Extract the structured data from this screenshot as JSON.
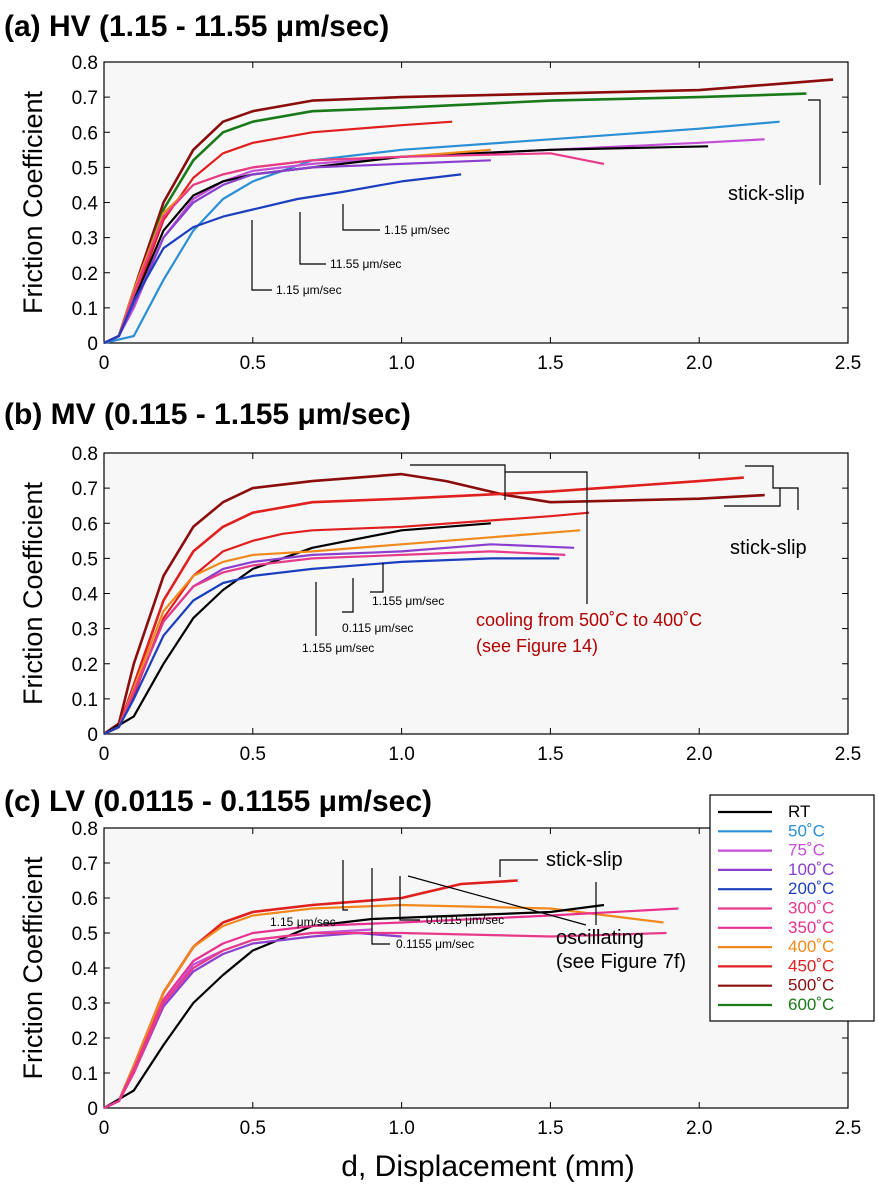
{
  "x_label": "d, Displacement (mm)",
  "chart_data": [
    {
      "type": "line",
      "title": "(a) HV (1.15 - 11.55 μm/sec)",
      "ylabel": "Friction Coefficient",
      "xlim": [
        0,
        2.5
      ],
      "ylim": [
        0,
        0.8
      ],
      "xticks": [
        "0",
        "0.5",
        "1.0",
        "1.5",
        "2.0",
        "2.5"
      ],
      "yticks": [
        "0",
        "0.1",
        "0.2",
        "0.3",
        "0.4",
        "0.5",
        "0.6",
        "0.7",
        "0.8"
      ],
      "series": [
        {
          "name": "500˚C",
          "color": "#8b0d0d",
          "stickslip": true,
          "x": [
            0,
            0.05,
            0.1,
            0.2,
            0.3,
            0.4,
            0.5,
            0.7,
            1.0,
            1.5,
            2.0,
            2.45
          ],
          "y": [
            0,
            0.02,
            0.15,
            0.4,
            0.55,
            0.63,
            0.66,
            0.69,
            0.7,
            0.71,
            0.72,
            0.75
          ]
        },
        {
          "name": "600˚C",
          "color": "#1a7a1a",
          "stickslip": true,
          "x": [
            0,
            0.05,
            0.1,
            0.2,
            0.3,
            0.4,
            0.5,
            0.7,
            1.0,
            1.5,
            2.0,
            2.36
          ],
          "y": [
            0,
            0.02,
            0.14,
            0.38,
            0.52,
            0.6,
            0.63,
            0.66,
            0.67,
            0.69,
            0.7,
            0.71
          ]
        },
        {
          "name": "450˚C",
          "color": "#e01f1f",
          "x": [
            0,
            0.05,
            0.1,
            0.2,
            0.3,
            0.4,
            0.5,
            0.7,
            1.0,
            1.17
          ],
          "y": [
            0,
            0.02,
            0.12,
            0.35,
            0.47,
            0.54,
            0.57,
            0.6,
            0.62,
            0.63
          ]
        },
        {
          "name": "50˚C",
          "color": "#2b8fd6",
          "x": [
            0,
            0.1,
            0.2,
            0.3,
            0.4,
            0.5,
            0.7,
            1.0,
            1.5,
            2.0,
            2.27
          ],
          "y": [
            0,
            0.02,
            0.18,
            0.32,
            0.41,
            0.46,
            0.52,
            0.55,
            0.58,
            0.61,
            0.63
          ]
        },
        {
          "name": "75˚C",
          "color": "#c34fd6",
          "x": [
            0,
            0.05,
            0.1,
            0.2,
            0.3,
            0.4,
            0.5,
            0.7,
            1.0,
            1.5,
            2.0,
            2.22
          ],
          "y": [
            0,
            0.02,
            0.1,
            0.3,
            0.41,
            0.46,
            0.49,
            0.51,
            0.53,
            0.55,
            0.57,
            0.58
          ]
        },
        {
          "name": "RT",
          "color": "#000000",
          "x": [
            0,
            0.05,
            0.1,
            0.2,
            0.3,
            0.4,
            0.5,
            0.7,
            1.0,
            1.5,
            2.03
          ],
          "y": [
            0,
            0.02,
            0.12,
            0.32,
            0.42,
            0.46,
            0.48,
            0.5,
            0.53,
            0.55,
            0.56
          ]
        },
        {
          "name": "400˚C",
          "color": "#f08a1c",
          "x": [
            0,
            0.05,
            0.1,
            0.2,
            0.3,
            0.4,
            0.5,
            0.7,
            1.0,
            1.3
          ],
          "y": [
            0,
            0.02,
            0.15,
            0.37,
            0.45,
            0.48,
            0.5,
            0.52,
            0.53,
            0.55
          ]
        },
        {
          "name": "300˚C",
          "color": "#e83a8a",
          "x": [
            0,
            0.05,
            0.1,
            0.2,
            0.3,
            0.4,
            0.5,
            0.7,
            1.0,
            1.5,
            1.68
          ],
          "y": [
            0,
            0.02,
            0.14,
            0.36,
            0.45,
            0.48,
            0.5,
            0.52,
            0.53,
            0.54,
            0.51
          ]
        },
        {
          "name": "100˚C",
          "color": "#8a3fcf",
          "x": [
            0,
            0.05,
            0.1,
            0.2,
            0.3,
            0.4,
            0.5,
            0.7,
            1.0,
            1.3
          ],
          "y": [
            0,
            0.02,
            0.11,
            0.3,
            0.4,
            0.45,
            0.48,
            0.5,
            0.51,
            0.52
          ]
        },
        {
          "name": "200˚C",
          "color": "#1c3fbf",
          "x": [
            0,
            0.05,
            0.1,
            0.2,
            0.3,
            0.4,
            0.5,
            0.65,
            0.8,
            1.0,
            1.2
          ],
          "y": [
            0,
            0.02,
            0.12,
            0.27,
            0.33,
            0.36,
            0.38,
            0.41,
            0.43,
            0.46,
            0.48
          ]
        }
      ],
      "annotations": [
        {
          "label": "stick-slip",
          "kind": "large"
        },
        {
          "label": "1.15 μm/sec",
          "kind": "small"
        },
        {
          "label": "11.55 μm/sec",
          "kind": "small"
        },
        {
          "label": "1.15 μm/sec",
          "kind": "small"
        }
      ]
    },
    {
      "type": "line",
      "title": "(b) MV (0.115 - 1.155 μm/sec)",
      "ylabel": "Friction Coefficient",
      "xlim": [
        0,
        2.5
      ],
      "ylim": [
        0,
        0.8
      ],
      "xticks": [
        "0",
        "0.5",
        "1.0",
        "1.5",
        "2.0",
        "2.5"
      ],
      "yticks": [
        "0",
        "0.1",
        "0.2",
        "0.3",
        "0.4",
        "0.5",
        "0.6",
        "0.7",
        "0.8"
      ],
      "series": [
        {
          "name": "500˚C",
          "color": "#8b0d0d",
          "stickslip": true,
          "x": [
            0,
            0.05,
            0.1,
            0.2,
            0.3,
            0.4,
            0.5,
            0.7,
            1.0,
            1.15,
            1.35,
            1.5,
            2.0,
            2.22
          ],
          "y": [
            0,
            0.03,
            0.2,
            0.45,
            0.59,
            0.66,
            0.7,
            0.72,
            0.74,
            0.72,
            0.68,
            0.66,
            0.67,
            0.68
          ]
        },
        {
          "name": "450˚C",
          "color": "#e01f1f",
          "stickslip": true,
          "x": [
            0,
            0.05,
            0.1,
            0.2,
            0.3,
            0.4,
            0.5,
            0.7,
            1.0,
            1.5,
            2.0,
            2.15
          ],
          "y": [
            0,
            0.02,
            0.14,
            0.38,
            0.52,
            0.59,
            0.63,
            0.66,
            0.67,
            0.69,
            0.72,
            0.73
          ]
        },
        {
          "name": "450˚C (cooling)",
          "color": "#e01f1f",
          "x": [
            0,
            0.05,
            0.1,
            0.2,
            0.3,
            0.4,
            0.5,
            0.6,
            0.7,
            1.0,
            1.5,
            1.63
          ],
          "y": [
            0,
            0.02,
            0.11,
            0.33,
            0.45,
            0.52,
            0.55,
            0.57,
            0.58,
            0.59,
            0.62,
            0.63
          ]
        },
        {
          "name": "RT",
          "color": "#000000",
          "x": [
            0,
            0.1,
            0.2,
            0.3,
            0.4,
            0.5,
            0.7,
            1.0,
            1.3
          ],
          "y": [
            0,
            0.05,
            0.2,
            0.33,
            0.41,
            0.47,
            0.53,
            0.58,
            0.6
          ]
        },
        {
          "name": "400˚C",
          "color": "#f08a1c",
          "x": [
            0,
            0.05,
            0.1,
            0.2,
            0.3,
            0.4,
            0.5,
            0.7,
            1.0,
            1.3,
            1.6
          ],
          "y": [
            0,
            0.02,
            0.13,
            0.35,
            0.45,
            0.49,
            0.51,
            0.52,
            0.54,
            0.56,
            0.58
          ]
        },
        {
          "name": "100˚C",
          "color": "#8a3fcf",
          "x": [
            0,
            0.05,
            0.1,
            0.2,
            0.3,
            0.4,
            0.5,
            0.7,
            1.0,
            1.3,
            1.58
          ],
          "y": [
            0,
            0.02,
            0.12,
            0.32,
            0.42,
            0.47,
            0.49,
            0.51,
            0.52,
            0.54,
            0.53
          ]
        },
        {
          "name": "300˚C",
          "color": "#e83a8a",
          "x": [
            0,
            0.05,
            0.1,
            0.2,
            0.3,
            0.4,
            0.5,
            0.7,
            1.0,
            1.3,
            1.55
          ],
          "y": [
            0,
            0.02,
            0.12,
            0.32,
            0.42,
            0.46,
            0.48,
            0.5,
            0.51,
            0.52,
            0.51
          ]
        },
        {
          "name": "200˚C",
          "color": "#1c3fbf",
          "x": [
            0,
            0.05,
            0.1,
            0.2,
            0.3,
            0.4,
            0.5,
            0.7,
            1.0,
            1.3,
            1.53
          ],
          "y": [
            0,
            0.02,
            0.1,
            0.28,
            0.38,
            0.43,
            0.45,
            0.47,
            0.49,
            0.5,
            0.5
          ]
        }
      ],
      "annotations": [
        {
          "label": "stick-slip",
          "kind": "large"
        },
        {
          "label": "1.155 μm/sec",
          "kind": "small"
        },
        {
          "label": "0.115 μm/sec",
          "kind": "small"
        },
        {
          "label": "1.155 μm/sec",
          "kind": "small"
        },
        {
          "label": "cooling from 500˚C to 400˚C",
          "kind": "red"
        },
        {
          "label": "(see Figure 14)",
          "kind": "red"
        }
      ]
    },
    {
      "type": "line",
      "title": "(c) LV (0.0115 - 0.1155 μm/sec)",
      "ylabel": "Friction Coefficient",
      "xlabel": "d, Displacement (mm)",
      "xlim": [
        0,
        2.5
      ],
      "ylim": [
        0,
        0.8
      ],
      "xticks": [
        "0",
        "0.5",
        "1.0",
        "1.5",
        "2.0",
        "2.5"
      ],
      "yticks": [
        "0",
        "0.1",
        "0.2",
        "0.3",
        "0.4",
        "0.5",
        "0.6",
        "0.7",
        "0.8"
      ],
      "series": [
        {
          "name": "450˚C",
          "color": "#e01f1f",
          "stickslip": true,
          "x": [
            0,
            0.05,
            0.1,
            0.2,
            0.3,
            0.4,
            0.5,
            0.7,
            1.0,
            1.2,
            1.39
          ],
          "y": [
            0,
            0.02,
            0.12,
            0.33,
            0.46,
            0.53,
            0.56,
            0.58,
            0.6,
            0.64,
            0.65
          ]
        },
        {
          "name": "400˚C",
          "color": "#f08a1c",
          "x": [
            0,
            0.05,
            0.1,
            0.2,
            0.3,
            0.4,
            0.5,
            0.7,
            1.0,
            1.5,
            1.88
          ],
          "y": [
            0,
            0.02,
            0.12,
            0.33,
            0.46,
            0.52,
            0.55,
            0.57,
            0.58,
            0.57,
            0.53
          ]
        },
        {
          "name": "RT",
          "color": "#000000",
          "x": [
            0,
            0.1,
            0.2,
            0.3,
            0.4,
            0.5,
            0.7,
            0.9,
            1.2,
            1.5,
            1.68
          ],
          "y": [
            0,
            0.05,
            0.18,
            0.3,
            0.38,
            0.45,
            0.52,
            0.54,
            0.55,
            0.56,
            0.58
          ]
        },
        {
          "name": "350˚C",
          "color": "#e8318f",
          "x": [
            0,
            0.05,
            0.1,
            0.2,
            0.3,
            0.4,
            0.5,
            0.7,
            1.0,
            1.5,
            1.93
          ],
          "y": [
            0,
            0.02,
            0.11,
            0.31,
            0.42,
            0.47,
            0.5,
            0.52,
            0.53,
            0.55,
            0.57
          ]
        },
        {
          "name": "75˚C",
          "color": "#c34fd6",
          "x": [
            0,
            0.05,
            0.1,
            0.2,
            0.3,
            0.4,
            0.5,
            0.7,
            0.9
          ],
          "y": [
            0,
            0.02,
            0.1,
            0.3,
            0.41,
            0.45,
            0.48,
            0.5,
            0.51
          ]
        },
        {
          "name": "100˚C",
          "color": "#8a3fcf",
          "x": [
            0,
            0.05,
            0.1,
            0.2,
            0.3,
            0.4,
            0.5,
            0.7,
            0.85,
            1.0
          ],
          "y": [
            0,
            0.02,
            0.1,
            0.29,
            0.39,
            0.44,
            0.47,
            0.49,
            0.5,
            0.49
          ]
        },
        {
          "name": "300˚C",
          "color": "#e83a8a",
          "x": [
            0,
            0.05,
            0.1,
            0.2,
            0.3,
            0.4,
            0.5,
            0.7,
            1.0,
            1.5,
            1.89
          ],
          "y": [
            0,
            0.02,
            0.1,
            0.3,
            0.4,
            0.45,
            0.48,
            0.5,
            0.5,
            0.49,
            0.5
          ]
        }
      ],
      "annotations": [
        {
          "label": "stick-slip",
          "kind": "large"
        },
        {
          "label": "1.15 μm/sec",
          "kind": "small"
        },
        {
          "label": "0.1155 μm/sec",
          "kind": "small"
        },
        {
          "label": "0.0115 μm/sec",
          "kind": "small"
        },
        {
          "label": "oscillating",
          "kind": "large"
        },
        {
          "label": "(see Figure 7f)",
          "kind": "large"
        }
      ]
    }
  ],
  "legend": {
    "position": "right",
    "entries": [
      {
        "label": "RT",
        "color": "#000000"
      },
      {
        "label": "50˚C",
        "color": "#2b8fd6"
      },
      {
        "label": "75˚C",
        "color": "#c34fd6"
      },
      {
        "label": "100˚C",
        "color": "#8a3fcf"
      },
      {
        "label": "200˚C",
        "color": "#1c3fbf"
      },
      {
        "label": "300˚C",
        "color": "#e83a8a"
      },
      {
        "label": "350˚C",
        "color": "#e8318f"
      },
      {
        "label": "400˚C",
        "color": "#f08a1c"
      },
      {
        "label": "450˚C",
        "color": "#e01f1f"
      },
      {
        "label": "500˚C",
        "color": "#8b0d0d"
      },
      {
        "label": "600˚C",
        "color": "#1a7a1a"
      }
    ]
  }
}
